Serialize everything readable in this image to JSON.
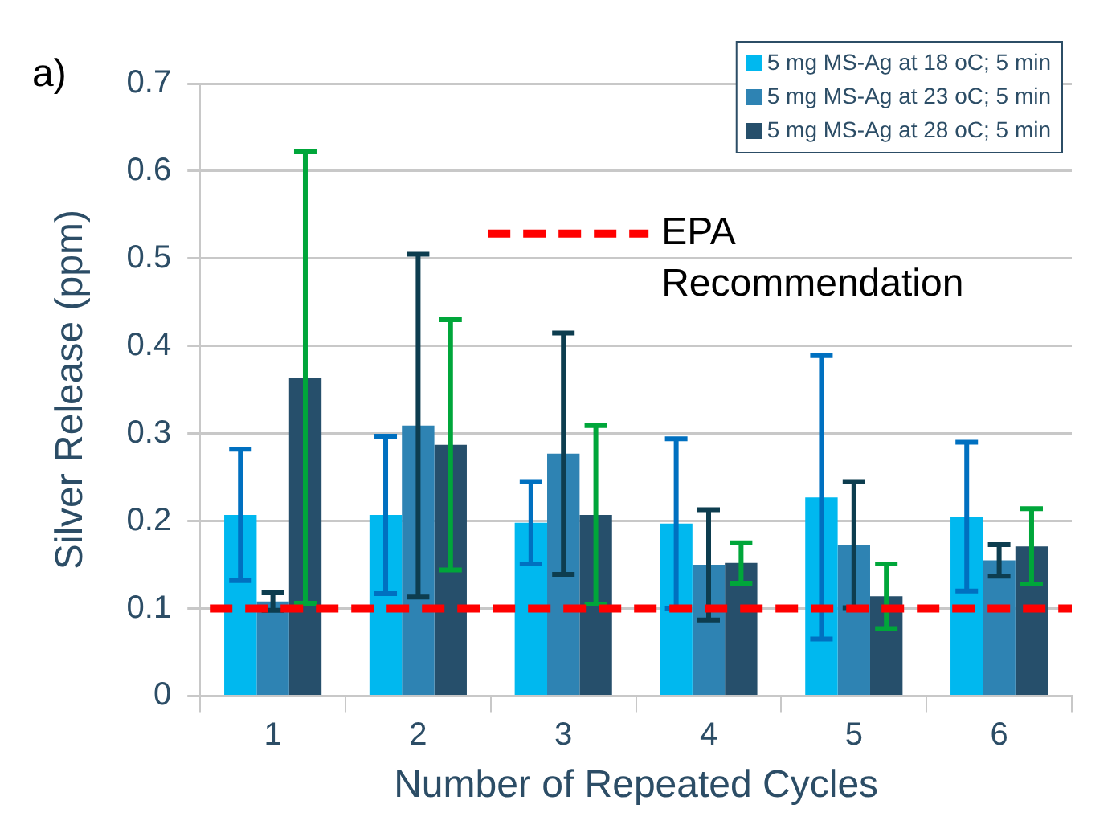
{
  "chart_data": {
    "type": "bar",
    "title": "a)",
    "xlabel": "Number of Repeated Cycles",
    "ylabel": "Silver Release (ppm)",
    "categories": [
      "1",
      "2",
      "3",
      "4",
      "5",
      "6"
    ],
    "series": [
      {
        "name": "5 mg MS-Ag at 18 oC; 5 min",
        "color": "#00b8ef",
        "values": [
          0.207,
          0.207,
          0.198,
          0.197,
          0.227,
          0.205
        ],
        "errors": [
          0.075,
          0.09,
          0.047,
          0.097,
          0.162,
          0.085
        ]
      },
      {
        "name": "5 mg MS-Ag at 23 oC; 5 min",
        "color": "#2e83b3",
        "values": [
          0.108,
          0.309,
          0.277,
          0.15,
          0.173,
          0.155
        ],
        "errors": [
          0.01,
          0.196,
          0.138,
          0.063,
          0.072,
          0.018
        ]
      },
      {
        "name": "5 mg MS-Ag at 28 oC; 5 min",
        "color": "#264f6b",
        "values": [
          0.364,
          0.287,
          0.207,
          0.152,
          0.114,
          0.171
        ],
        "errors": [
          0.258,
          0.143,
          0.102,
          0.023,
          0.037,
          0.043
        ]
      }
    ],
    "ylim": [
      0,
      0.7
    ],
    "yticks": [
      0,
      0.1,
      0.2,
      0.3,
      0.4,
      0.5,
      0.6,
      0.7
    ],
    "grid": "y",
    "legend": "top right",
    "ref_lines": [
      {
        "axis": "y",
        "value": 0.1,
        "label": "EPA Recommendation",
        "color": "#ff0000",
        "line_style": "dashed"
      }
    ]
  }
}
